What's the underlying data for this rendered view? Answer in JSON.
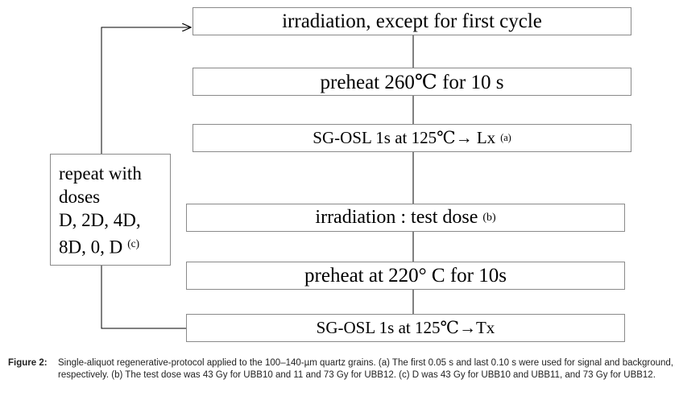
{
  "steps": [
    {
      "text": "irradiation, except for first cycle",
      "sup": ""
    },
    {
      "text": "preheat 260℃ for 10 s",
      "sup": ""
    },
    {
      "text": "SG-OSL 1s at 125℃→ Lx",
      "sup": "(a)"
    },
    {
      "text": "irradiation : test dose",
      "sup": "(b)"
    },
    {
      "text": "preheat at 220° C for 10s",
      "sup": ""
    },
    {
      "text": "SG-OSL 1s at 125℃→Tx",
      "sup": ""
    }
  ],
  "repeat": {
    "line1": "repeat with",
    "line2": "doses",
    "line3": "D, 2D, 4D,",
    "line4": "8D, 0, D",
    "sup": "(c)"
  },
  "caption": {
    "label": "Figure 2:",
    "text": "Single-aliquot regenerative-protocol applied to the 100–140-µm quartz grains. (a) The first 0.05 s and last 0.10 s were used for signal and background, respectively. (b) The test dose was 43 Gy for UBB10 and 11 and 73 Gy for UBB12. (c) D was 43 Gy for UBB10 and UBB11, and 73 Gy for UBB12."
  }
}
